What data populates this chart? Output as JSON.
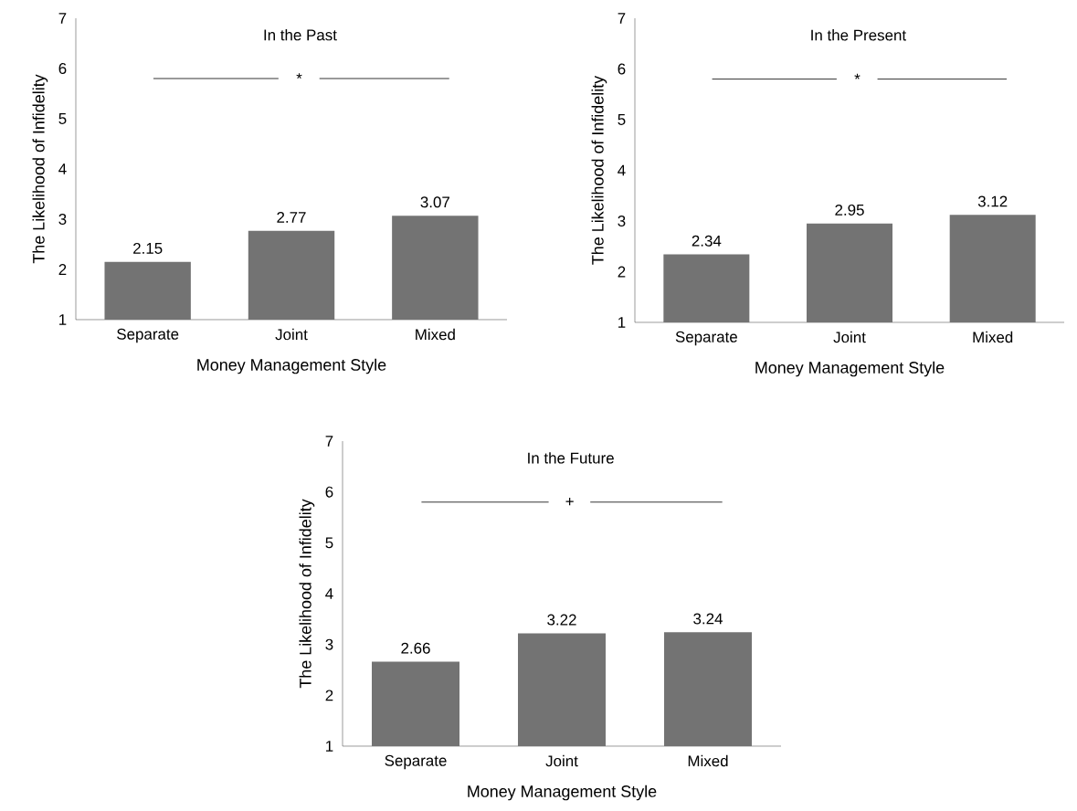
{
  "chart_data": [
    {
      "type": "bar",
      "title": "In the Past",
      "xlabel": "Money Management Style",
      "ylabel": "The Likelihood of Infidelity",
      "categories": [
        "Separate",
        "Joint",
        "Mixed"
      ],
      "values": [
        2.15,
        2.77,
        3.07
      ],
      "color": "#737373",
      "ylim": [
        1,
        7
      ],
      "yticks": [
        1,
        2,
        3,
        4,
        5,
        6,
        7
      ],
      "data_labels": true,
      "annotations": [
        "*"
      ]
    },
    {
      "type": "bar",
      "title": "In the Present",
      "xlabel": "Money Management Style",
      "ylabel": "The Likelihood of Infidelity",
      "categories": [
        "Separate",
        "Joint",
        "Mixed"
      ],
      "values": [
        2.34,
        2.95,
        3.12
      ],
      "color": "#737373",
      "ylim": [
        1,
        7
      ],
      "yticks": [
        1,
        2,
        3,
        4,
        5,
        6,
        7
      ],
      "data_labels": true,
      "annotations": [
        "*"
      ]
    },
    {
      "type": "bar",
      "title": "In the Future",
      "xlabel": "Money Management Style",
      "ylabel": "The Likelihood of Infidelity",
      "categories": [
        "Separate",
        "Joint",
        "Mixed"
      ],
      "values": [
        2.66,
        3.22,
        3.24
      ],
      "color": "#737373",
      "ylim": [
        1,
        7
      ],
      "yticks": [
        1,
        2,
        3,
        4,
        5,
        6,
        7
      ],
      "data_labels": true,
      "annotations": [
        "+"
      ]
    }
  ]
}
